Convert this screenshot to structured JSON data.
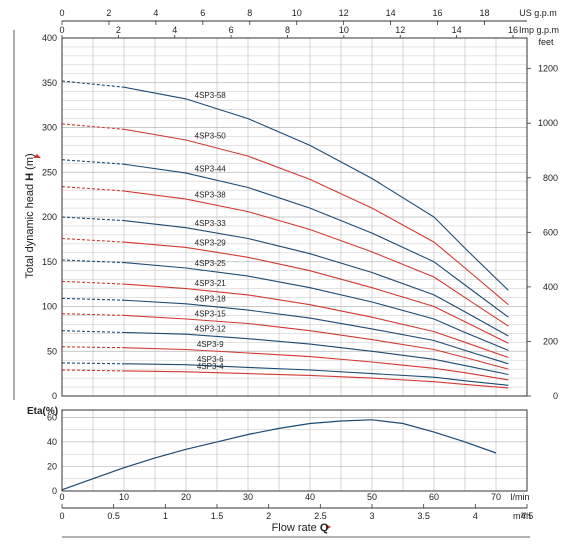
{
  "colors": {
    "blue": "#1d4a73",
    "red": "#d13a32",
    "grid": "#b8b8b8",
    "axis": "#333333",
    "arrow": "#d13a32"
  },
  "chart_data": [
    {
      "type": "line",
      "description_axes": {
        "x_bottom": {
          "unit": "l/min",
          "range": [
            0,
            75
          ]
        },
        "x_top_us": {
          "label": "US g.p.m",
          "ticks": [
            "0",
            "2",
            "4",
            "6",
            "8",
            "10",
            "12",
            "14",
            "16",
            "18"
          ]
        },
        "x_top_imp": {
          "label": "Imp g.p.m",
          "ticks": [
            "0",
            "2",
            "4",
            "6",
            "8",
            "10",
            "12",
            "14",
            "16"
          ]
        },
        "y_left": {
          "range": [
            0,
            400
          ],
          "ticks": [
            "0",
            "50",
            "100",
            "150",
            "200",
            "250",
            "300",
            "350",
            "400"
          ]
        },
        "y_right": {
          "label": "feet",
          "ticks": [
            "0",
            "200",
            "400",
            "600",
            "800",
            "1000",
            "1200"
          ]
        }
      },
      "ylabel_prefix": "Total dynamic head ",
      "ylabel_symbol": "H",
      "ylabel_unit": " (m)",
      "grid": true,
      "series": [
        {
          "name": "4SP3-58",
          "color": "blue",
          "points": [
            [
              0,
              352
            ],
            [
              10,
              345
            ],
            [
              20,
              332
            ],
            [
              30,
              310
            ],
            [
              40,
              280
            ],
            [
              50,
              243
            ],
            [
              60,
              200
            ],
            [
              65,
              165
            ],
            [
              72,
              118
            ]
          ]
        },
        {
          "name": "4SP3-50",
          "color": "red",
          "points": [
            [
              0,
              304
            ],
            [
              10,
              298
            ],
            [
              20,
              286
            ],
            [
              30,
              268
            ],
            [
              40,
              242
            ],
            [
              50,
              210
            ],
            [
              60,
              172
            ],
            [
              65,
              143
            ],
            [
              72,
              102
            ]
          ]
        },
        {
          "name": "4SP3-44",
          "color": "blue",
          "points": [
            [
              0,
              264
            ],
            [
              10,
              259
            ],
            [
              20,
              249
            ],
            [
              30,
              233
            ],
            [
              40,
              210
            ],
            [
              50,
              182
            ],
            [
              60,
              150
            ],
            [
              65,
              124
            ],
            [
              72,
              88
            ]
          ]
        },
        {
          "name": "4SP3-38",
          "color": "red",
          "points": [
            [
              0,
              234
            ],
            [
              10,
              229
            ],
            [
              20,
              220
            ],
            [
              30,
              206
            ],
            [
              40,
              186
            ],
            [
              50,
              161
            ],
            [
              60,
              133
            ],
            [
              65,
              110
            ],
            [
              72,
              78
            ]
          ]
        },
        {
          "name": "4SP3-33",
          "color": "blue",
          "points": [
            [
              0,
              200
            ],
            [
              10,
              196
            ],
            [
              20,
              188
            ],
            [
              30,
              176
            ],
            [
              40,
              159
            ],
            [
              50,
              138
            ],
            [
              60,
              113
            ],
            [
              65,
              94
            ],
            [
              72,
              67
            ]
          ]
        },
        {
          "name": "4SP3-29",
          "color": "red",
          "points": [
            [
              0,
              176
            ],
            [
              10,
              172
            ],
            [
              20,
              166
            ],
            [
              30,
              155
            ],
            [
              40,
              140
            ],
            [
              50,
              121
            ],
            [
              60,
              100
            ],
            [
              65,
              83
            ],
            [
              72,
              59
            ]
          ]
        },
        {
          "name": "4SP3-25",
          "color": "blue",
          "points": [
            [
              0,
              152
            ],
            [
              10,
              149
            ],
            [
              20,
              143
            ],
            [
              30,
              134
            ],
            [
              40,
              121
            ],
            [
              50,
              105
            ],
            [
              60,
              86
            ],
            [
              65,
              71
            ],
            [
              72,
              51
            ]
          ]
        },
        {
          "name": "4SP3-21",
          "color": "red",
          "points": [
            [
              0,
              128
            ],
            [
              10,
              125
            ],
            [
              20,
              120
            ],
            [
              30,
              113
            ],
            [
              40,
              102
            ],
            [
              50,
              88
            ],
            [
              60,
              72
            ],
            [
              65,
              60
            ],
            [
              72,
              43
            ]
          ]
        },
        {
          "name": "4SP3-18",
          "color": "blue",
          "points": [
            [
              0,
              109
            ],
            [
              10,
              107
            ],
            [
              20,
              103
            ],
            [
              30,
              96
            ],
            [
              40,
              87
            ],
            [
              50,
              75
            ],
            [
              60,
              62
            ],
            [
              65,
              51
            ],
            [
              72,
              36
            ]
          ]
        },
        {
          "name": "4SP3-15",
          "color": "red",
          "points": [
            [
              0,
              92
            ],
            [
              10,
              90
            ],
            [
              20,
              86
            ],
            [
              30,
              81
            ],
            [
              40,
              73
            ],
            [
              50,
              63
            ],
            [
              60,
              52
            ],
            [
              65,
              43
            ],
            [
              72,
              30
            ]
          ]
        },
        {
          "name": "4SP3-12",
          "color": "blue",
          "points": [
            [
              0,
              73
            ],
            [
              10,
              71
            ],
            [
              20,
              69
            ],
            [
              30,
              64
            ],
            [
              40,
              58
            ],
            [
              50,
              50
            ],
            [
              60,
              41
            ],
            [
              65,
              34
            ],
            [
              72,
              24
            ]
          ]
        },
        {
          "name": "4SP3-9",
          "color": "red",
          "points": [
            [
              0,
              55
            ],
            [
              10,
              54
            ],
            [
              20,
              52
            ],
            [
              30,
              48
            ],
            [
              40,
              44
            ],
            [
              50,
              38
            ],
            [
              60,
              31
            ],
            [
              65,
              26
            ],
            [
              72,
              18
            ]
          ]
        },
        {
          "name": "4SP3-6",
          "color": "blue",
          "points": [
            [
              0,
              37
            ],
            [
              10,
              36
            ],
            [
              20,
              35
            ],
            [
              30,
              32
            ],
            [
              40,
              29
            ],
            [
              50,
              25
            ],
            [
              60,
              21
            ],
            [
              65,
              17
            ],
            [
              72,
              12
            ]
          ]
        },
        {
          "name": "4SP3-4",
          "color": "red",
          "points": [
            [
              0,
              29
            ],
            [
              10,
              28
            ],
            [
              20,
              27
            ],
            [
              30,
              25
            ],
            [
              40,
              23
            ],
            [
              50,
              20
            ],
            [
              60,
              16
            ],
            [
              65,
              13
            ],
            [
              72,
              9
            ]
          ]
        }
      ]
    },
    {
      "type": "line",
      "ylabel": "Eta(%)",
      "y_ticks": [
        "0",
        "20",
        "40",
        "60"
      ],
      "x_bottom_lmin": {
        "label": "l/min",
        "ticks": [
          "0",
          "10",
          "20",
          "30",
          "40",
          "50",
          "60",
          "70"
        ]
      },
      "x_bottom_m3h": {
        "label": "m³/h",
        "ticks": [
          "0",
          "0.5",
          "1",
          "1.5",
          "2",
          "2.5",
          "3",
          "3.5",
          "4",
          "4.5"
        ]
      },
      "xlabel_prefix": "Flow rate ",
      "xlabel_symbol": "Q",
      "series": [
        {
          "color": "blue",
          "points": [
            [
              0,
              1
            ],
            [
              5,
              10
            ],
            [
              10,
              19
            ],
            [
              15,
              27
            ],
            [
              20,
              34
            ],
            [
              25,
              40
            ],
            [
              30,
              46
            ],
            [
              35,
              51
            ],
            [
              40,
              55
            ],
            [
              45,
              57
            ],
            [
              50,
              58
            ],
            [
              55,
              55
            ],
            [
              60,
              48
            ],
            [
              65,
              40
            ],
            [
              70,
              31
            ]
          ]
        }
      ]
    }
  ]
}
